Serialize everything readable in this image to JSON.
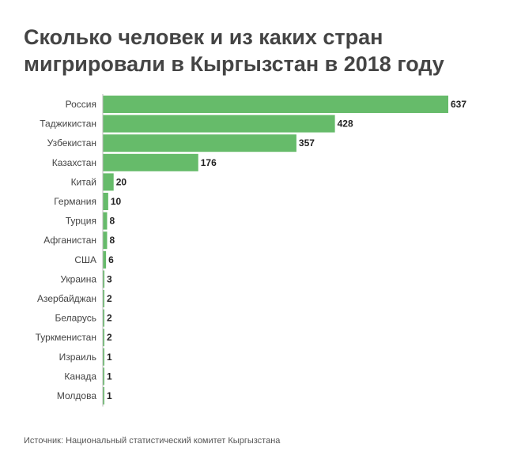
{
  "title": "Сколько человек и из каких стран мигрировали в Кыргызстан в 2018 году",
  "source": "Источник: Национальный статистический комитет Кыргызстана",
  "colors": {
    "bar": "#66bb6a",
    "axis": "#bbbbbb"
  },
  "chart_data": {
    "type": "bar",
    "orientation": "horizontal",
    "title": "Сколько человек и из каких стран мигрировали в Кыргызстан в 2018 году",
    "categories": [
      "Россия",
      "Таджикистан",
      "Узбекистан",
      "Казахстан",
      "Китай",
      "Германия",
      "Турция",
      "Афганистан",
      "США",
      "Украина",
      "Азербайджан",
      "Беларусь",
      "Туркменистан",
      "Израиль",
      "Канада",
      "Молдова"
    ],
    "values": [
      637,
      428,
      357,
      176,
      20,
      10,
      8,
      8,
      6,
      3,
      2,
      2,
      2,
      1,
      1,
      1
    ],
    "xlim": [
      0,
      637
    ],
    "grid": false,
    "legend": "none"
  }
}
